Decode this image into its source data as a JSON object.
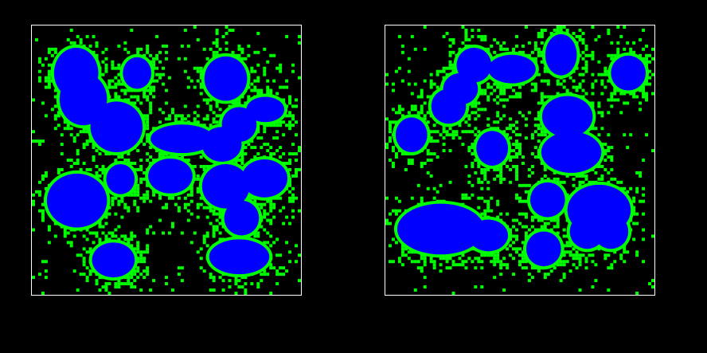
{
  "image": {
    "background_color": "#000000",
    "frame_color": "#ffffff",
    "colors": {
      "blob_fill": "#0000ff",
      "blob_edge": "#00ff00",
      "speckle": "#00ff00"
    }
  },
  "panels": [
    {
      "name": "left-segmentation-panel",
      "blob_count": 17,
      "seed": 11
    },
    {
      "name": "right-segmentation-panel",
      "blob_count": 17,
      "seed": 29
    }
  ]
}
